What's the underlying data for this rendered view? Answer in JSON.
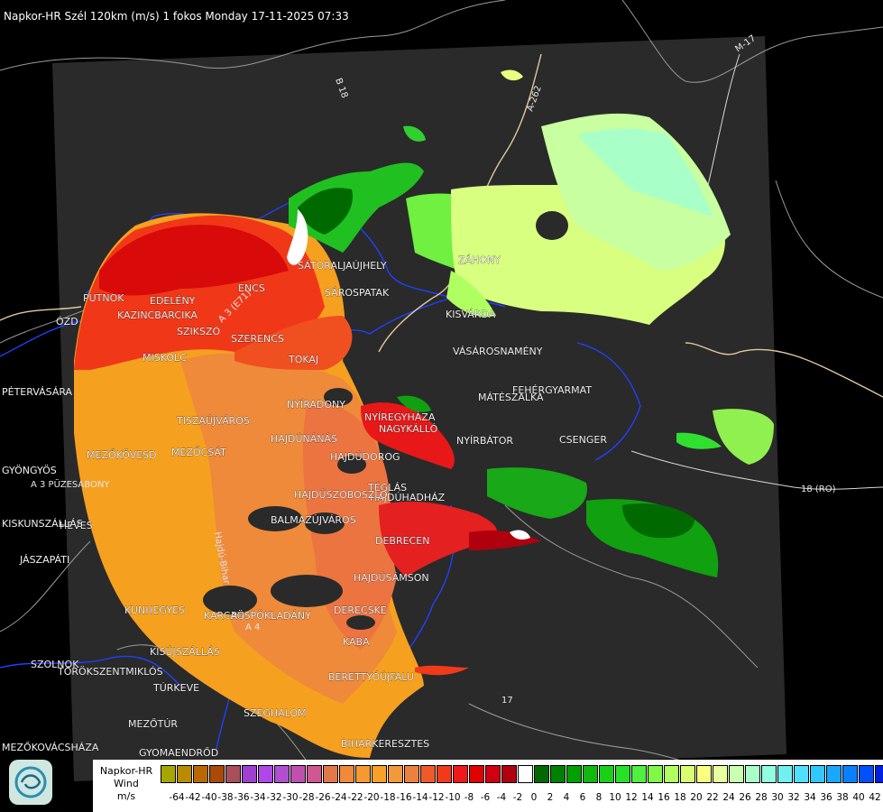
{
  "header": {
    "title": "Napkor-HR Szél 120km (m/s) 1 fokos Monday 17-11-2025 07:33"
  },
  "map": {
    "place_labels": [
      "SÁTORALJAÚJHELY",
      "SÁROSPATAK",
      "ZÁHONY",
      "KISVÁRDA",
      "VÁSÁROSNAMÉNY",
      "FEHÉRGYARMAT",
      "MÁTÉSZALKA",
      "CSENGER",
      "NYÍRBÁTOR",
      "NAGYKÁLLÓ",
      "NYÍREGYHÁZA",
      "TOKAJ",
      "SZERENCS",
      "SZIKSZÓ",
      "KAZINCBARCIKA",
      "EDELÉNY",
      "PUTNOK",
      "ENCS",
      "MISKOLC",
      "TISZAÚJVÁROS",
      "HAJDÚNÁNÁS",
      "HAJDÚDOROG",
      "TÉGLÁS",
      "NYÍRADONY",
      "HAJDÚHADHÁZ",
      "HAJDÚSZOBOSZLÓ",
      "BALMAZÚJVÁROS",
      "DEBRECEN",
      "HAJDÚSÁMSON",
      "DERECSKE",
      "BERETTYÓÚJFALU",
      "PÜSPÖKLADÁNY",
      "KABA",
      "KUNHEGYES",
      "KARCAG",
      "KISÚJSZÁLLÁS",
      "TÖRÖKSZENTMIKLÓS",
      "TÚRKEVE",
      "MEZŐTÚR",
      "SZEGHALOM",
      "GYOMAENDRŐD",
      "SZOLNOK",
      "JÁSZAPÁTI",
      "HEVES",
      "GYÖNGYÖS",
      "MEZŐKÖVESD",
      "MEZŐCSÁT",
      "ÓZD",
      "PÉTERVÁSÁRA",
      "BIHARKERESZTES",
      "KISKUNSZÁLLÁS",
      "MEZŐKOVÁCSHÁZA"
    ],
    "road_labels": [
      "B 18",
      "A-262",
      "M-17",
      "A 3 (E71)",
      "A 3 PÜZESABONY",
      "18 (RO)",
      "17",
      "A 4",
      "Hajdú-Bihar"
    ]
  },
  "legend": {
    "title_line1": "Napkor-HR",
    "title_line2": "Wind",
    "unit": "m/s",
    "colors": [
      "#a6a600",
      "#b88c00",
      "#b86a00",
      "#a84a08",
      "#a8505a",
      "#a040d0",
      "#b048e8",
      "#b050d0",
      "#c050b0",
      "#d05890",
      "#e0784a",
      "#f08a3a",
      "#f49a30",
      "#f8a028",
      "#f09a3a",
      "#ec8040",
      "#f05a2a",
      "#f03a1a",
      "#f01818",
      "#e00000",
      "#d00010",
      "#b00010",
      "#ffffff",
      "#006a00",
      "#008000",
      "#00a000",
      "#10b810",
      "#18d018",
      "#28e028",
      "#50f040",
      "#80f848",
      "#b0ff60",
      "#d8ff70",
      "#f8ff80",
      "#e8ffa0",
      "#c8ffb0",
      "#a8ffc8",
      "#90ffe0",
      "#70f0f0",
      "#50e0ff",
      "#30c8ff",
      "#18a8ff",
      "#0880ff",
      "#0050ff",
      "#0020e0"
    ],
    "ticks": [
      "-64",
      "-42",
      "-40",
      "-38",
      "-36",
      "-34",
      "-32",
      "-30",
      "-28",
      "-26",
      "-24",
      "-22",
      "-20",
      "-18",
      "-16",
      "-14",
      "-12",
      "-10",
      "-8",
      "-6",
      "-4",
      "-2",
      "0",
      "2",
      "4",
      "6",
      "8",
      "10",
      "12",
      "14",
      "16",
      "18",
      "20",
      "22",
      "24",
      "26",
      "28",
      "30",
      "32",
      "34",
      "36",
      "38",
      "40",
      "42"
    ]
  }
}
